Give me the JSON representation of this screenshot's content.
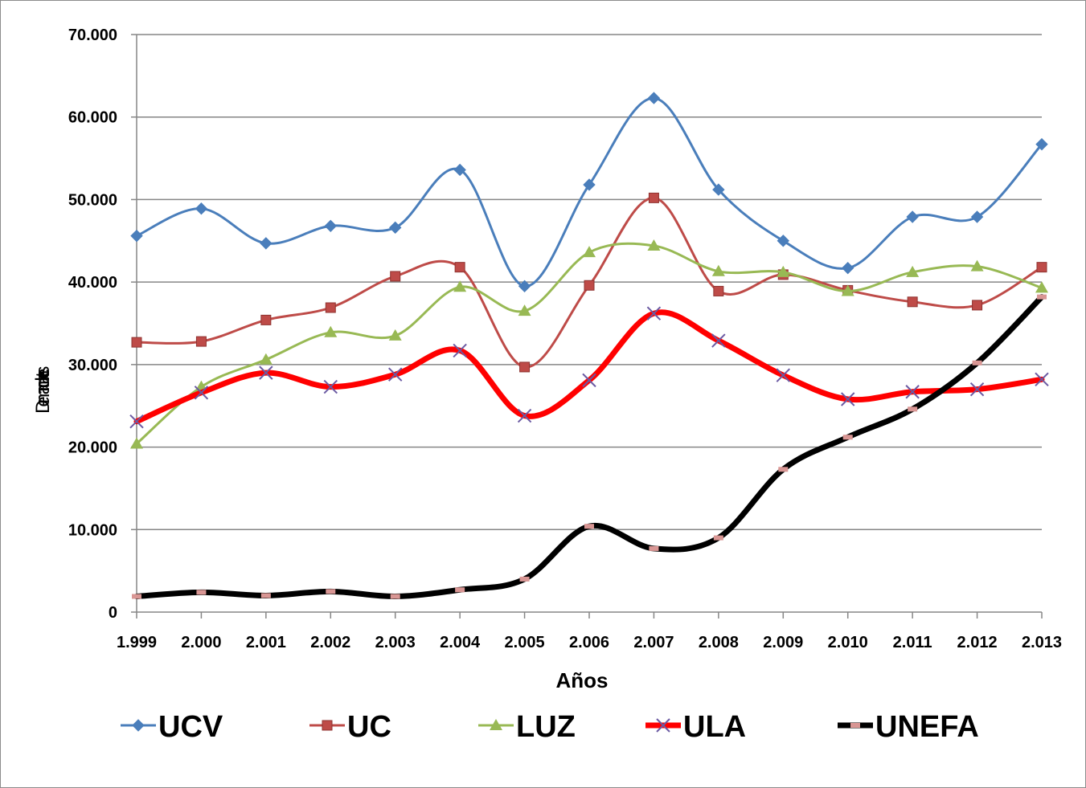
{
  "chart_data": {
    "type": "line",
    "title": "",
    "xlabel": "Años",
    "ylabel": "Demandantes",
    "ylim": [
      0,
      70000
    ],
    "yticks": [
      0,
      10000,
      20000,
      30000,
      40000,
      50000,
      60000,
      70000
    ],
    "ytick_labels": [
      "0",
      "10.000",
      "20.000",
      "30.000",
      "40.000",
      "50.000",
      "60.000",
      "70.000"
    ],
    "categories": [
      "1.999",
      "2.000",
      "2.001",
      "2.002",
      "2.003",
      "2.004",
      "2.005",
      "2.006",
      "2.007",
      "2.008",
      "2.009",
      "2.010",
      "2.011",
      "2.012",
      "2.013"
    ],
    "grid": true,
    "legend_position": "bottom",
    "series": [
      {
        "name": "UCV",
        "color": "#4a7ebb",
        "marker": "diamond",
        "values": [
          45600,
          48900,
          44700,
          46800,
          46600,
          53600,
          39500,
          51800,
          62300,
          51200,
          45000,
          41700,
          47900,
          47900,
          56700
        ]
      },
      {
        "name": "UC",
        "color": "#be4b48",
        "marker": "square",
        "values": [
          32700,
          32800,
          35400,
          36900,
          40700,
          41800,
          29700,
          39600,
          50200,
          38900,
          40900,
          39000,
          37600,
          37200,
          41800
        ]
      },
      {
        "name": "LUZ",
        "color": "#98b954",
        "marker": "triangle",
        "values": [
          20400,
          27300,
          30600,
          33900,
          33500,
          39400,
          36500,
          43600,
          44400,
          41300,
          41200,
          38900,
          41200,
          41900,
          39300
        ]
      },
      {
        "name": "ULA",
        "color": "#ff0000",
        "marker": "x",
        "values": [
          23100,
          26600,
          29000,
          27300,
          28800,
          31700,
          23800,
          28100,
          36200,
          32900,
          28700,
          25800,
          26700,
          27000,
          28200
        ]
      },
      {
        "name": "UNEFA",
        "color": "#000000",
        "marker": "dash",
        "values": [
          1900,
          2400,
          2000,
          2500,
          1900,
          2700,
          4000,
          10400,
          7700,
          9000,
          17300,
          21200,
          24600,
          30200,
          38200
        ]
      }
    ]
  }
}
